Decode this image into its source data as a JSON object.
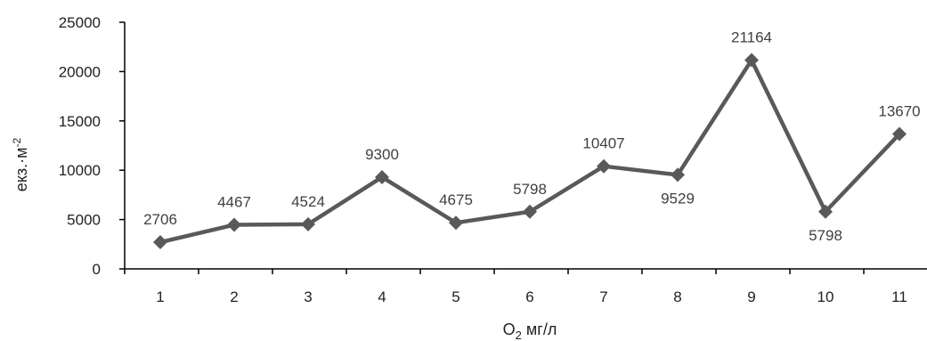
{
  "chart_data": {
    "type": "line",
    "title": "",
    "xlabel_main": "O",
    "xlabel_sub": "2",
    "xlabel_rest": " мг/л",
    "ylabel_main": "екз.·м",
    "ylabel_sup": "-2",
    "categories": [
      "1",
      "2",
      "3",
      "4",
      "5",
      "6",
      "7",
      "8",
      "9",
      "10",
      "11"
    ],
    "series": [
      {
        "values": [
          2706,
          4467,
          4524,
          9300,
          4675,
          5798,
          10407,
          9529,
          21164,
          5798,
          13670
        ],
        "color": "#595959"
      }
    ],
    "value_labels": [
      "2706",
      "4467",
      "4524",
      "9300",
      "4675",
      "5798",
      "10407",
      "9529",
      "21164",
      "5798",
      "13670"
    ],
    "label_positions": [
      "above",
      "above",
      "above",
      "above",
      "above",
      "above",
      "above",
      "below",
      "above",
      "below",
      "above"
    ],
    "ylim": [
      0,
      25000
    ],
    "yticks": [
      0,
      5000,
      10000,
      15000,
      20000,
      25000
    ],
    "ytick_labels": [
      "0",
      "5000",
      "10000",
      "15000",
      "20000",
      "25000"
    ],
    "marker": "diamond",
    "grid": false,
    "legend": "none"
  }
}
